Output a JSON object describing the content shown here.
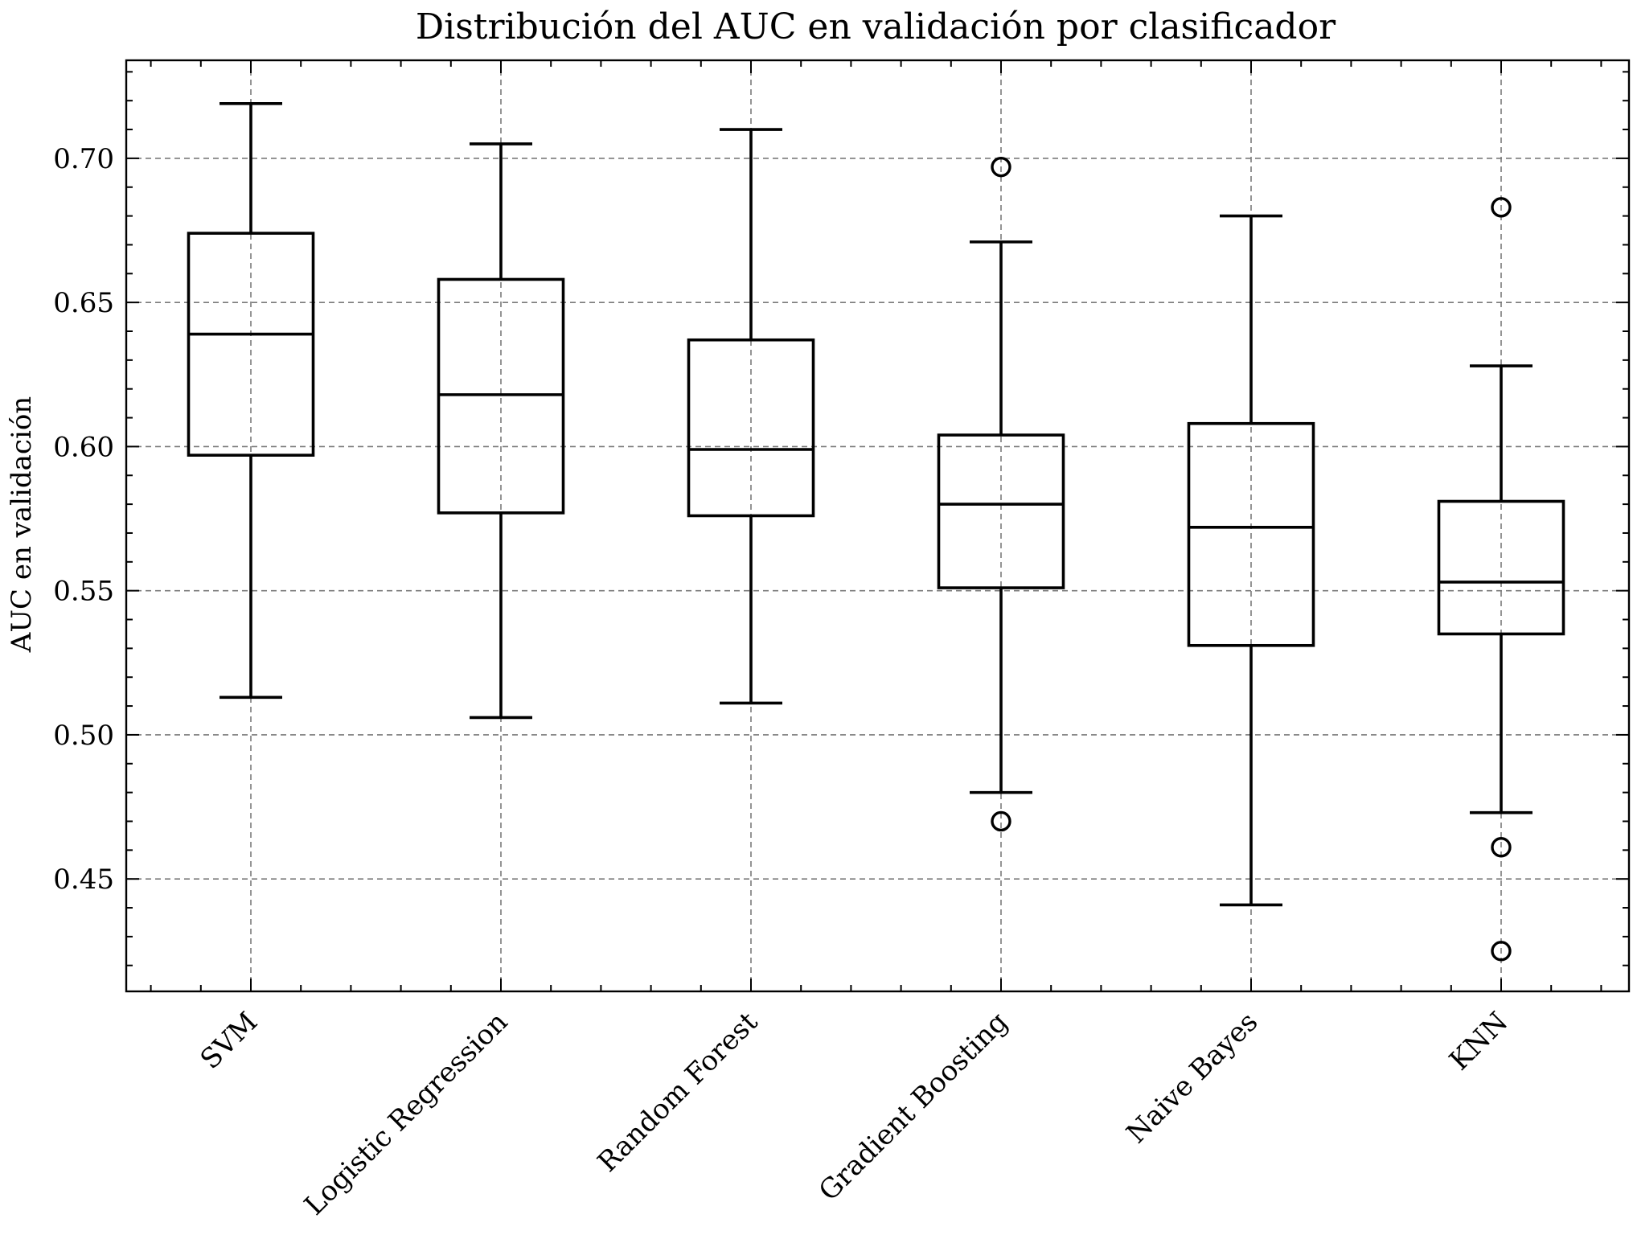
{
  "chart_data": {
    "type": "box",
    "title": "Distribución del AUC en validación por clasificador",
    "xlabel": "",
    "ylabel": "AUC en validación",
    "ylim": [
      0.411,
      0.734
    ],
    "yticks": [
      0.45,
      0.5,
      0.55,
      0.6,
      0.65,
      0.7
    ],
    "ytick_labels": [
      "0.45",
      "0.50",
      "0.55",
      "0.60",
      "0.65",
      "0.70"
    ],
    "grid": true,
    "categories": [
      "SVM",
      "Logistic Regression",
      "Random Forest",
      "Gradient Boosting",
      "Naive Bayes",
      "KNN"
    ],
    "boxes": [
      {
        "whisker_low": 0.513,
        "q1": 0.597,
        "median": 0.639,
        "q3": 0.674,
        "whisker_high": 0.719,
        "outliers": []
      },
      {
        "whisker_low": 0.506,
        "q1": 0.577,
        "median": 0.618,
        "q3": 0.658,
        "whisker_high": 0.705,
        "outliers": []
      },
      {
        "whisker_low": 0.511,
        "q1": 0.576,
        "median": 0.599,
        "q3": 0.637,
        "whisker_high": 0.71,
        "outliers": []
      },
      {
        "whisker_low": 0.48,
        "q1": 0.551,
        "median": 0.58,
        "q3": 0.604,
        "whisker_high": 0.671,
        "outliers": [
          0.697,
          0.47
        ]
      },
      {
        "whisker_low": 0.441,
        "q1": 0.531,
        "median": 0.572,
        "q3": 0.608,
        "whisker_high": 0.68,
        "outliers": []
      },
      {
        "whisker_low": 0.473,
        "q1": 0.535,
        "median": 0.553,
        "q3": 0.581,
        "whisker_high": 0.628,
        "outliers": [
          0.683,
          0.461,
          0.425
        ]
      }
    ],
    "colors": {
      "box": "#000000",
      "grid": "#7a7a7a",
      "background": "#ffffff"
    }
  }
}
